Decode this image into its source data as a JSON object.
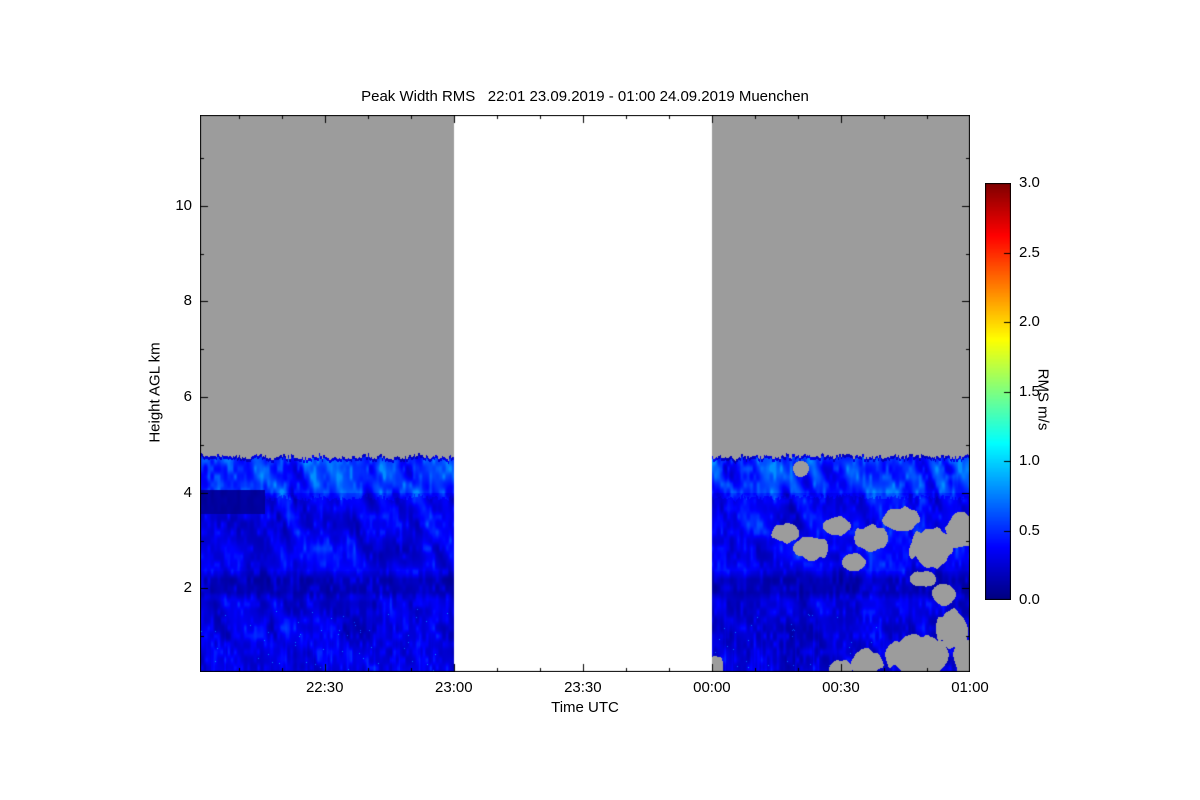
{
  "page": {
    "background": "#ffffff"
  },
  "chart_data": {
    "type": "heatmap",
    "title": "Peak Width RMS   22:01 23.09.2019 - 01:00 24.09.2019 Muenchen",
    "xlabel": "Time UTC",
    "ylabel": "Height AGL km",
    "x_axis": {
      "start_label": "22:01",
      "end_label": "01:00",
      "range_minutes": [
        1,
        180
      ],
      "ticks": [
        {
          "minute": 30,
          "label": "22:30"
        },
        {
          "minute": 60,
          "label": "23:00"
        },
        {
          "minute": 90,
          "label": "23:30"
        },
        {
          "minute": 120,
          "label": "00:00"
        },
        {
          "minute": 150,
          "label": "00:30"
        },
        {
          "minute": 180,
          "label": "01:00"
        }
      ],
      "minor_tick_every_minutes": 10
    },
    "y_axis": {
      "range_km": [
        0.25,
        11.9
      ],
      "ticks": [
        {
          "km": 2,
          "label": "2"
        },
        {
          "km": 4,
          "label": "4"
        },
        {
          "km": 6,
          "label": "6"
        },
        {
          "km": 8,
          "label": "8"
        },
        {
          "km": 10,
          "label": "10"
        }
      ],
      "minor_tick_every_km": 1
    },
    "colorbar": {
      "label": "RMS m/s",
      "range": [
        0.0,
        3.0
      ],
      "colormap": "jet",
      "ticks": [
        {
          "value": 0.0,
          "label": "0.0"
        },
        {
          "value": 0.5,
          "label": "0.5"
        },
        {
          "value": 1.0,
          "label": "1.0"
        },
        {
          "value": 1.5,
          "label": "1.5"
        },
        {
          "value": 2.0,
          "label": "2.0"
        },
        {
          "value": 2.5,
          "label": "2.5"
        },
        {
          "value": 3.0,
          "label": "3.0"
        }
      ]
    },
    "no_data_color": "#9c9c9c",
    "missing_interval": {
      "from_minute": 60,
      "to_minute": 120,
      "color": "#ffffff"
    },
    "segments": [
      {
        "from_minute": 1,
        "to_minute": 60,
        "layer_top_km": 4.7
      },
      {
        "from_minute": 120,
        "to_minute": 180,
        "layer_top_km": 4.7
      }
    ],
    "data_rms_range_ms": [
      0.05,
      0.7
    ],
    "dark_band_km": [
      1.85,
      2.25
    ],
    "dark_patches": [
      {
        "t0": 1,
        "t1": 16,
        "h0": 3.55,
        "h1": 4.05
      }
    ],
    "gray_patches": [
      {
        "t": 137,
        "h": 3.15,
        "rt": 3.5,
        "rh": 0.22,
        "seed": 2
      },
      {
        "t": 143,
        "h": 2.85,
        "rt": 4.5,
        "rh": 0.28,
        "seed": 3
      },
      {
        "t": 149,
        "h": 3.3,
        "rt": 3.5,
        "rh": 0.22,
        "seed": 4
      },
      {
        "t": 153,
        "h": 2.55,
        "rt": 3.0,
        "rh": 0.2,
        "seed": 5
      },
      {
        "t": 157,
        "h": 3.05,
        "rt": 4.5,
        "rh": 0.3,
        "seed": 6
      },
      {
        "t": 164,
        "h": 3.45,
        "rt": 5.0,
        "rh": 0.28,
        "seed": 7
      },
      {
        "t": 171,
        "h": 2.85,
        "rt": 5.5,
        "rh": 0.45,
        "seed": 8
      },
      {
        "t": 178,
        "h": 3.2,
        "rt": 4.0,
        "rh": 0.4,
        "seed": 9
      },
      {
        "t": 169,
        "h": 2.2,
        "rt": 3.5,
        "rh": 0.18,
        "seed": 10
      },
      {
        "t": 176,
        "h": 1.15,
        "rt": 4.0,
        "rh": 0.45,
        "seed": 11
      },
      {
        "t": 168,
        "h": 0.6,
        "rt": 8.0,
        "rh": 0.45,
        "seed": 12
      },
      {
        "t": 156,
        "h": 0.45,
        "rt": 4.0,
        "rh": 0.3,
        "seed": 13
      },
      {
        "t": 150,
        "h": 0.3,
        "rt": 3.0,
        "rh": 0.22,
        "seed": 14
      },
      {
        "t": 121,
        "h": 0.35,
        "rt": 2.0,
        "rh": 0.3,
        "seed": 15
      },
      {
        "t": 179,
        "h": 0.5,
        "rt": 3.0,
        "rh": 0.5,
        "seed": 16
      },
      {
        "t": 140.5,
        "h": 4.5,
        "rt": 2.0,
        "rh": 0.2,
        "seed": 17
      },
      {
        "t": 174,
        "h": 1.85,
        "rt": 3.0,
        "rh": 0.25,
        "seed": 18
      }
    ],
    "noise_seed": 7
  }
}
